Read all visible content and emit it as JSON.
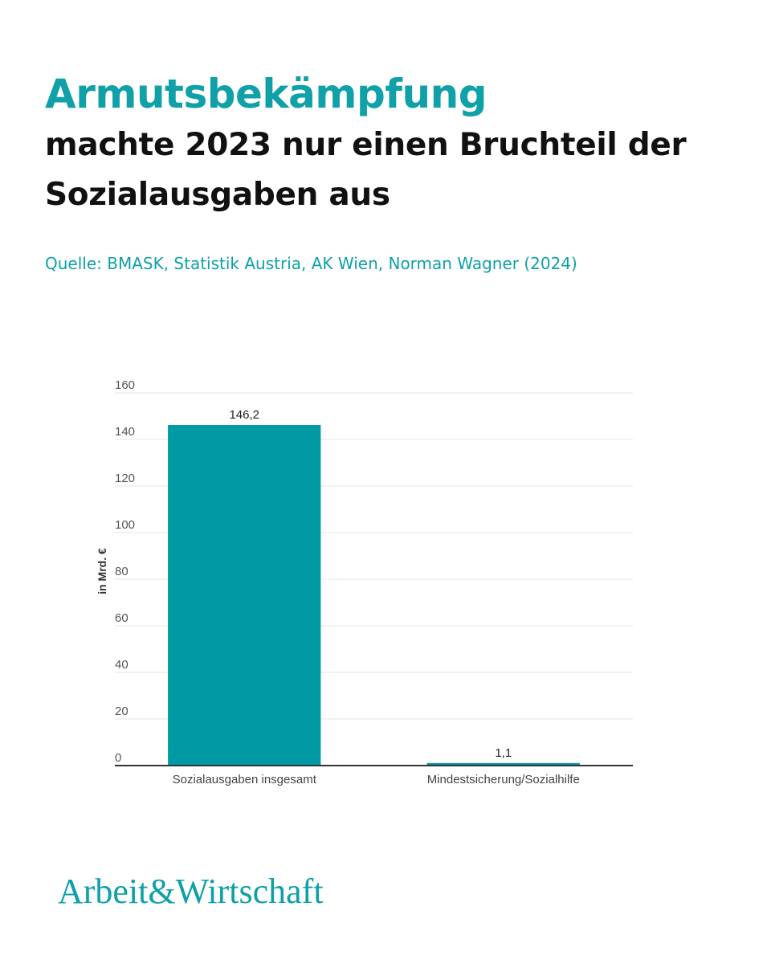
{
  "title": {
    "accent": "Armutsbekämpfung",
    "main": "machte 2023 nur einen Bruchteil der Sozialausgaben aus"
  },
  "source": "Quelle: BMASK, Statistik Austria, AK Wien, Norman Wagner (2024)",
  "brand": "Arbeit&Wirtschaft",
  "colors": {
    "accent": "#0fa0a8",
    "bar": "#009aa5",
    "text": "#111111",
    "grid": "#e6e6e6",
    "axis": "#333333"
  },
  "chart_data": {
    "type": "bar",
    "categories": [
      "Sozialausgaben insgesamt",
      "Mindestsicherung/Sozialhilfe"
    ],
    "values": [
      146.2,
      1.1
    ],
    "value_labels": [
      "146,2",
      "1,1"
    ],
    "ylabel": "in Mrd. €",
    "ylim": [
      0,
      160
    ],
    "yticks": [
      0,
      20,
      40,
      60,
      80,
      100,
      120,
      140,
      160
    ],
    "grid": true,
    "legend": "none"
  }
}
